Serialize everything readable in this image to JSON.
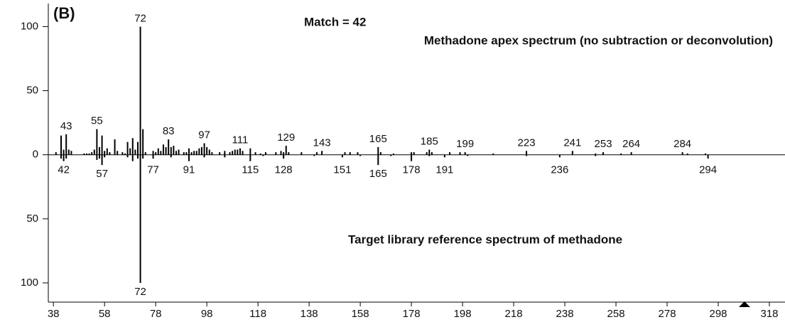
{
  "chart_data": {
    "type": "mirror-spectrum",
    "title": "(B)",
    "annotations": [
      "Match = 42"
    ],
    "xlim": [
      36,
      323
    ],
    "ylim": [
      -115,
      118
    ],
    "xticks": [
      38,
      58,
      78,
      98,
      118,
      138,
      158,
      178,
      198,
      218,
      238,
      258,
      278,
      298,
      318
    ],
    "yticks": [
      {
        "value": -100,
        "label": "100"
      },
      {
        "value": -50,
        "label": "50"
      },
      0,
      50,
      100
    ],
    "series": [
      {
        "name": "Methadone apex spectrum (no subtraction or deconvolution)",
        "color": "#000000",
        "x": [
          39,
          41,
          42,
          43,
          44,
          45,
          50,
          51,
          52,
          53,
          54,
          55,
          56,
          57,
          58,
          59,
          60,
          62,
          63,
          65,
          66,
          67,
          68,
          69,
          70,
          71,
          72,
          73,
          74,
          77,
          78,
          79,
          80,
          81,
          82,
          83,
          84,
          85,
          86,
          87,
          89,
          90,
          91,
          92,
          93,
          94,
          95,
          96,
          97,
          98,
          99,
          100,
          103,
          105,
          107,
          108,
          109,
          110,
          111,
          112,
          115,
          117,
          119,
          121,
          125,
          127,
          128,
          129,
          130,
          135,
          141,
          143,
          152,
          154,
          157,
          165,
          166,
          171,
          178,
          179,
          184,
          185,
          186,
          193,
          197,
          199,
          210,
          223,
          241,
          250,
          253,
          260,
          264,
          284,
          286,
          293
        ],
        "values": [
          2,
          15,
          4,
          16,
          4,
          3,
          1,
          1,
          1,
          2,
          4,
          20,
          6,
          15,
          3,
          5,
          2,
          12,
          3,
          2,
          1,
          10,
          5,
          13,
          4,
          10,
          100,
          20,
          2,
          3,
          2,
          5,
          3,
          8,
          6,
          12,
          6,
          7,
          3,
          4,
          2,
          2,
          5,
          2,
          3,
          3,
          5,
          6,
          9,
          6,
          4,
          2,
          2,
          3,
          2,
          3,
          4,
          4,
          5,
          3,
          5,
          2,
          1,
          2,
          2,
          3,
          2,
          7,
          2,
          2,
          2,
          3,
          2,
          2,
          2,
          6,
          2,
          1,
          2,
          2,
          2,
          4,
          2,
          2,
          2,
          2,
          1,
          3,
          3,
          1,
          2,
          1,
          2,
          2,
          1,
          1
        ],
        "peak_labels": [
          43,
          55,
          72,
          83,
          97,
          111,
          129,
          143,
          165,
          185,
          199,
          223,
          241,
          253,
          264,
          284
        ]
      },
      {
        "name": "Target library reference spectrum of methadone",
        "color": "#000000",
        "x": [
          41,
          42,
          43,
          55,
          56,
          57,
          58,
          67,
          69,
          71,
          72,
          73,
          77,
          84,
          91,
          97,
          105,
          115,
          120,
          128,
          140,
          151,
          158,
          165,
          170,
          178,
          185,
          191,
          200,
          223,
          236,
          250,
          294
        ],
        "values": [
          -3,
          -5,
          -3,
          -4,
          -3,
          -8,
          -2,
          -2,
          -5,
          -3,
          -100,
          -3,
          -3,
          -2,
          -5,
          -2,
          -2,
          -5,
          -1,
          -3,
          -1,
          -2,
          -1,
          -8,
          -1,
          -5,
          -1,
          -2,
          -1,
          -1,
          -2,
          -1,
          -3
        ],
        "peak_labels": [
          42,
          57,
          72,
          77,
          91,
          115,
          128,
          151,
          165,
          178,
          191,
          236,
          294
        ]
      }
    ]
  }
}
